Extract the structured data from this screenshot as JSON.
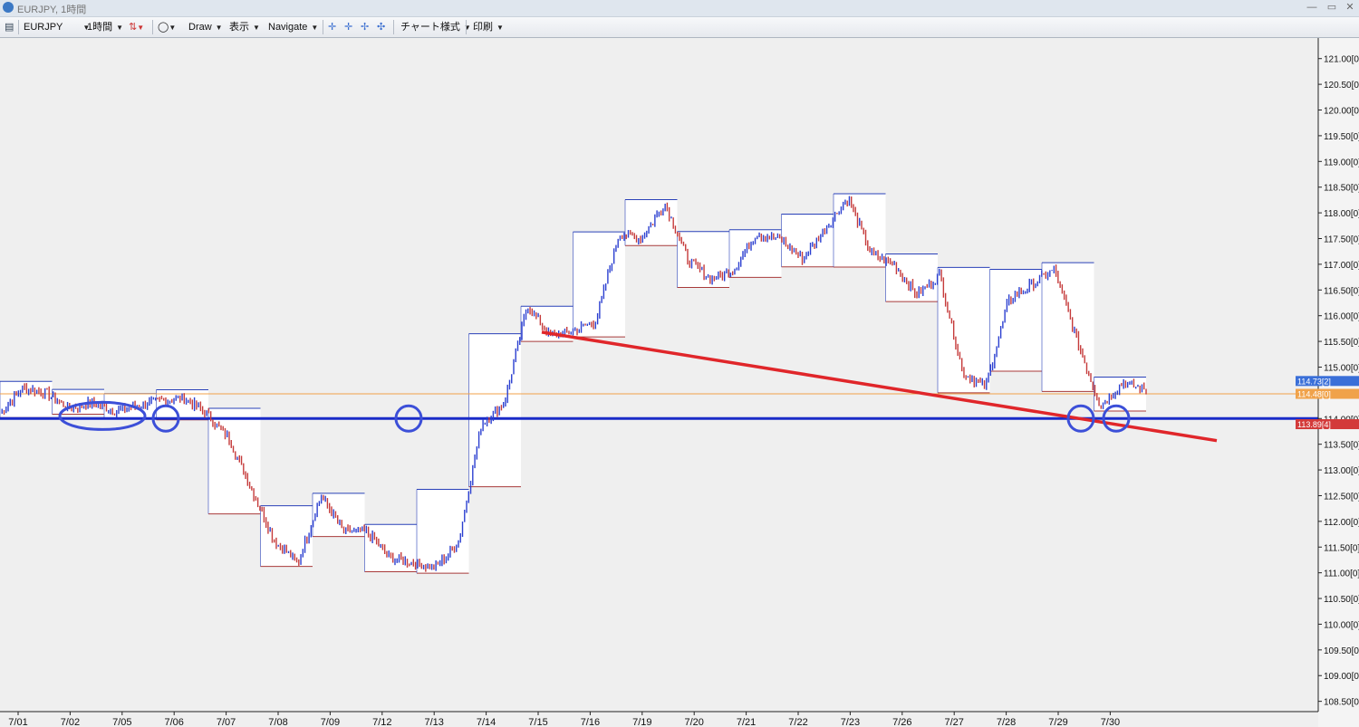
{
  "window": {
    "title": "EURJPY, 1時間",
    "minimize_glyph": "—",
    "restore_glyph": "▭",
    "close_glyph": "✕"
  },
  "toolbar": {
    "symbol": "EURJPY",
    "timeframe": "1時間",
    "draw": "Draw",
    "view": "表示",
    "navigate": "Navigate",
    "chart_style": "チャート様式",
    "print": "印刷",
    "icons": [
      "list-icon",
      "candlestick-icon",
      "circle-tool-icon",
      "crosshair-icon",
      "zoom-in-icon",
      "zoom-out-icon",
      "fit-icon"
    ]
  },
  "chart_data": {
    "type": "line",
    "symbol": "EURJPY",
    "timeframe": "1時間",
    "ylim": [
      108.3,
      121.4
    ],
    "y_ticks": [
      "121.00[0]",
      "120.50[0]",
      "120.00[0]",
      "119.50[0]",
      "119.00[0]",
      "118.50[0]",
      "118.00[0]",
      "117.50[0]",
      "117.00[0]",
      "116.50[0]",
      "116.00[0]",
      "115.50[0]",
      "115.00[0]",
      "114.50[0]",
      "114.00[0]",
      "113.50[0]",
      "113.00[0]",
      "112.50[0]",
      "112.00[0]",
      "111.50[0]",
      "111.00[0]",
      "110.50[0]",
      "110.00[0]",
      "109.50[0]",
      "109.00[0]",
      "108.50[0]"
    ],
    "x_ticks": [
      "7/01",
      "7/02",
      "7/05",
      "7/06",
      "7/07",
      "7/08",
      "7/09",
      "7/12",
      "7/13",
      "7/14",
      "7/15",
      "7/16",
      "7/19",
      "7/20",
      "7/21",
      "7/22",
      "7/23",
      "7/26",
      "7/27",
      "7/28",
      "7/29",
      "7/30"
    ],
    "price_labels": [
      {
        "text": "114.73[2]",
        "value": 114.73,
        "color": "#3a6fd8"
      },
      {
        "text": "114.48[0]",
        "value": 114.48,
        "color": "#f0a24a"
      },
      {
        "text": "113.89[4]",
        "value": 113.89,
        "color": "#d33a3a"
      }
    ],
    "current_price": 114.48,
    "support_level": 114.0,
    "close_series": [
      114.1,
      114.6,
      114.5,
      114.2,
      114.3,
      114.15,
      114.25,
      114.35,
      114.4,
      114.1,
      113.6,
      112.6,
      111.6,
      111.2,
      112.5,
      111.8,
      111.8,
      111.3,
      111.2,
      111.1,
      111.6,
      113.9,
      114.3,
      116.2,
      115.6,
      115.7,
      115.9,
      117.6,
      117.5,
      118.2,
      117.1,
      116.7,
      116.9,
      117.6,
      117.5,
      117.1,
      117.7,
      118.3,
      117.2,
      117.0,
      116.4,
      116.8,
      114.9,
      114.6,
      116.3,
      116.6,
      116.9,
      115.5,
      114.25,
      114.7,
      114.55
    ]
  },
  "colors": {
    "bull": "#2b3fd0",
    "bear": "#c53a3a",
    "support": "#1a2bc8",
    "trendline": "#e0262a",
    "circle": "#3c4fd8",
    "high_step": "#2940b8",
    "low_step": "#a83a3a",
    "price_line": "#f0a24a"
  }
}
